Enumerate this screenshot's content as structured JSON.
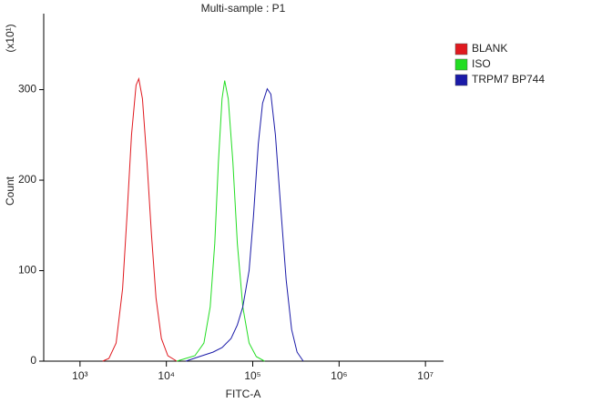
{
  "chart_data": {
    "type": "line",
    "title": "Multi-sample : P1",
    "x_label": "FITC-A",
    "y_label": "Count",
    "y_multiplier": "(x10¹)",
    "x_scale": "log",
    "xlim": [
      380,
      16200000
    ],
    "ylim": [
      0,
      384
    ],
    "xticks": [
      {
        "value": 1000,
        "label": "10³"
      },
      {
        "value": 10000,
        "label": "10⁴"
      },
      {
        "value": 100000,
        "label": "10⁵"
      },
      {
        "value": 1000000,
        "label": "10⁶"
      },
      {
        "value": 10000000,
        "label": "10⁷"
      }
    ],
    "yticks": [
      0,
      100,
      200,
      300
    ],
    "legend": "right",
    "series": [
      {
        "name": "BLANK",
        "color": "#e0191f",
        "x": [
          1830,
          2160,
          2620,
          3110,
          3500,
          3950,
          4460,
          4800,
          5280,
          5960,
          6720,
          7580,
          8750,
          10400,
          13200
        ],
        "values": [
          0,
          3,
          20,
          80,
          160,
          250,
          305,
          312,
          290,
          220,
          140,
          70,
          25,
          6,
          0
        ]
      },
      {
        "name": "ISO",
        "color": "#22dd22",
        "x": [
          13200,
          16800,
          21400,
          27200,
          32200,
          36300,
          40000,
          44100,
          47300,
          52100,
          58900,
          66400,
          76700,
          90800,
          110000,
          137000
        ],
        "values": [
          0,
          3,
          6,
          20,
          60,
          130,
          220,
          290,
          310,
          290,
          220,
          130,
          60,
          20,
          5,
          0
        ]
      },
      {
        "name": "TRPM7 BP744",
        "color": "#1a1aa8",
        "x": [
          16800,
          24100,
          34600,
          44100,
          56100,
          66400,
          76700,
          90800,
          102000,
          116000,
          130000,
          147000,
          162000,
          183000,
          211000,
          244000,
          282000,
          326000,
          385000
        ],
        "values": [
          0,
          5,
          10,
          15,
          25,
          40,
          60,
          100,
          160,
          240,
          285,
          301,
          295,
          250,
          170,
          90,
          35,
          10,
          0
        ]
      }
    ]
  }
}
